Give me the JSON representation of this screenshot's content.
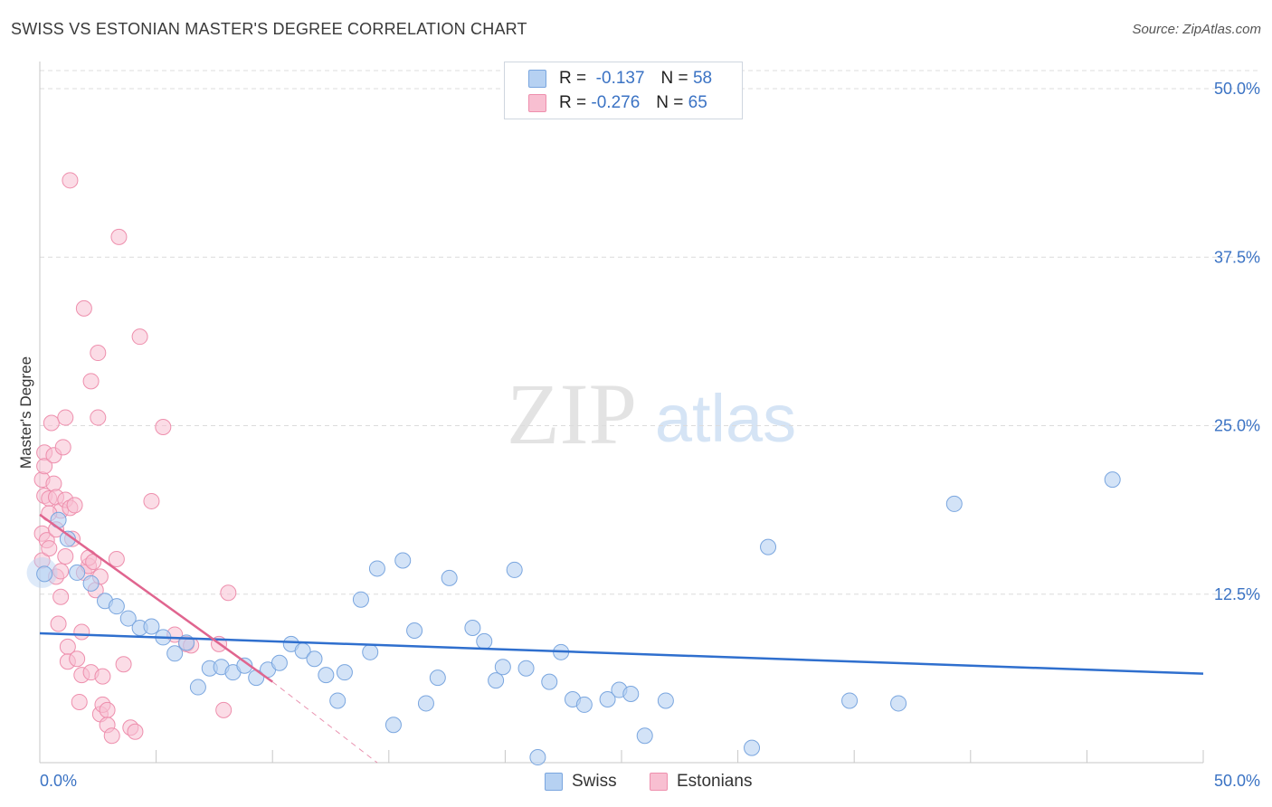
{
  "title": "SWISS VS ESTONIAN MASTER'S DEGREE CORRELATION CHART",
  "source": "Source: ZipAtlas.com",
  "watermark": {
    "zip": "ZIP",
    "atlas": "atlas"
  },
  "legend_top": {
    "swiss": {
      "r_label": "R =",
      "r_value": "-0.137",
      "n_label": "N =",
      "n_value": "58"
    },
    "estonians": {
      "r_label": "R =",
      "r_value": "-0.276",
      "n_label": "N =",
      "n_value": "65"
    }
  },
  "legend_bottom": {
    "swiss": "Swiss",
    "estonians": "Estonians"
  },
  "colors": {
    "swiss_fill": "#b6d1f2",
    "swiss_stroke": "#7aa6df",
    "swiss_line": "#2f6fce",
    "est_fill": "#f8bfd1",
    "est_stroke": "#ee8fad",
    "est_line": "#e0658f",
    "tick_label": "#3b73c4",
    "grid": "#dcdcdc"
  },
  "chart_data": {
    "type": "scatter",
    "title": "SWISS VS ESTONIAN MASTER'S DEGREE CORRELATION CHART",
    "xlabel": "",
    "ylabel": "Master's Degree",
    "xlim": [
      0,
      50
    ],
    "ylim": [
      0,
      51
    ],
    "x_tick_labels": [
      "0.0%",
      "50.0%"
    ],
    "y_ticks": [
      12.5,
      25.0,
      37.5,
      50.0
    ],
    "y_tick_labels": [
      "12.5%",
      "25.0%",
      "37.5%",
      "50.0%"
    ],
    "grid": true,
    "series": [
      {
        "name": "Swiss",
        "r": -0.137,
        "n": 58,
        "trend": {
          "x": [
            0,
            50
          ],
          "y": [
            9.6,
            6.6
          ]
        },
        "points": [
          [
            0.2,
            14.0
          ],
          [
            0.8,
            18.0
          ],
          [
            1.2,
            16.6
          ],
          [
            1.6,
            14.1
          ],
          [
            2.2,
            13.3
          ],
          [
            2.8,
            12.0
          ],
          [
            3.3,
            11.6
          ],
          [
            3.8,
            10.7
          ],
          [
            4.3,
            10.0
          ],
          [
            4.8,
            10.1
          ],
          [
            5.3,
            9.3
          ],
          [
            5.8,
            8.1
          ],
          [
            6.3,
            8.9
          ],
          [
            6.8,
            5.6
          ],
          [
            7.3,
            7.0
          ],
          [
            7.8,
            7.1
          ],
          [
            8.3,
            6.7
          ],
          [
            8.8,
            7.2
          ],
          [
            9.3,
            6.3
          ],
          [
            9.8,
            6.9
          ],
          [
            10.3,
            7.4
          ],
          [
            10.8,
            8.8
          ],
          [
            11.3,
            8.3
          ],
          [
            11.8,
            7.7
          ],
          [
            12.3,
            6.5
          ],
          [
            12.8,
            4.6
          ],
          [
            13.1,
            6.7
          ],
          [
            13.8,
            12.1
          ],
          [
            14.2,
            8.2
          ],
          [
            14.5,
            14.4
          ],
          [
            15.2,
            2.8
          ],
          [
            15.6,
            15.0
          ],
          [
            16.1,
            9.8
          ],
          [
            16.6,
            4.4
          ],
          [
            17.1,
            6.3
          ],
          [
            17.6,
            13.7
          ],
          [
            18.6,
            10.0
          ],
          [
            19.1,
            9.0
          ],
          [
            19.6,
            6.1
          ],
          [
            19.9,
            7.1
          ],
          [
            20.4,
            14.3
          ],
          [
            20.9,
            7.0
          ],
          [
            21.4,
            0.4
          ],
          [
            21.9,
            6.0
          ],
          [
            22.4,
            8.2
          ],
          [
            22.9,
            4.7
          ],
          [
            23.4,
            4.3
          ],
          [
            24.4,
            4.7
          ],
          [
            24.9,
            5.4
          ],
          [
            25.4,
            5.1
          ],
          [
            26.0,
            2.0
          ],
          [
            26.9,
            4.6
          ],
          [
            30.6,
            1.1
          ],
          [
            31.3,
            16.0
          ],
          [
            34.8,
            4.6
          ],
          [
            36.9,
            4.4
          ],
          [
            39.3,
            19.2
          ],
          [
            46.1,
            21.0
          ]
        ]
      },
      {
        "name": "Estonians",
        "r": -0.276,
        "n": 65,
        "trend": {
          "x": [
            0,
            10.0
          ],
          "y": [
            18.4,
            6.0
          ]
        },
        "trend_dashed": {
          "x": [
            10.0,
            14.5
          ],
          "y": [
            6.0,
            0.0
          ]
        },
        "points": [
          [
            0.1,
            21.0
          ],
          [
            0.1,
            17.0
          ],
          [
            0.1,
            15.0
          ],
          [
            0.2,
            23.0
          ],
          [
            0.2,
            22.0
          ],
          [
            0.2,
            19.8
          ],
          [
            0.3,
            16.5
          ],
          [
            0.4,
            15.9
          ],
          [
            0.4,
            19.6
          ],
          [
            0.5,
            25.2
          ],
          [
            0.6,
            22.8
          ],
          [
            0.6,
            20.7
          ],
          [
            0.7,
            19.7
          ],
          [
            0.7,
            17.3
          ],
          [
            0.7,
            13.8
          ],
          [
            0.8,
            10.3
          ],
          [
            0.9,
            18.7
          ],
          [
            0.9,
            14.2
          ],
          [
            0.9,
            12.3
          ],
          [
            1.0,
            23.4
          ],
          [
            1.1,
            25.6
          ],
          [
            1.1,
            19.5
          ],
          [
            1.1,
            15.3
          ],
          [
            1.2,
            8.6
          ],
          [
            1.2,
            7.5
          ],
          [
            1.3,
            18.9
          ],
          [
            1.3,
            43.2
          ],
          [
            1.4,
            16.6
          ],
          [
            1.5,
            19.1
          ],
          [
            1.6,
            7.7
          ],
          [
            1.7,
            4.5
          ],
          [
            1.8,
            9.7
          ],
          [
            1.8,
            6.5
          ],
          [
            1.9,
            14.1
          ],
          [
            1.9,
            33.7
          ],
          [
            2.1,
            14.6
          ],
          [
            2.1,
            15.2
          ],
          [
            2.2,
            28.3
          ],
          [
            2.2,
            6.7
          ],
          [
            2.3,
            14.9
          ],
          [
            2.4,
            12.8
          ],
          [
            2.5,
            30.4
          ],
          [
            2.5,
            25.6
          ],
          [
            2.6,
            13.8
          ],
          [
            2.6,
            3.6
          ],
          [
            2.7,
            6.4
          ],
          [
            2.7,
            4.3
          ],
          [
            2.9,
            3.9
          ],
          [
            2.9,
            2.8
          ],
          [
            3.1,
            2.0
          ],
          [
            3.3,
            15.1
          ],
          [
            3.4,
            39.0
          ],
          [
            3.6,
            7.3
          ],
          [
            3.9,
            2.6
          ],
          [
            4.1,
            2.3
          ],
          [
            4.3,
            31.6
          ],
          [
            4.8,
            19.4
          ],
          [
            5.3,
            24.9
          ],
          [
            5.8,
            9.5
          ],
          [
            6.3,
            8.8
          ],
          [
            6.5,
            8.7
          ],
          [
            7.7,
            8.8
          ],
          [
            7.9,
            3.9
          ],
          [
            8.1,
            12.6
          ],
          [
            0.4,
            18.5
          ]
        ]
      }
    ]
  }
}
